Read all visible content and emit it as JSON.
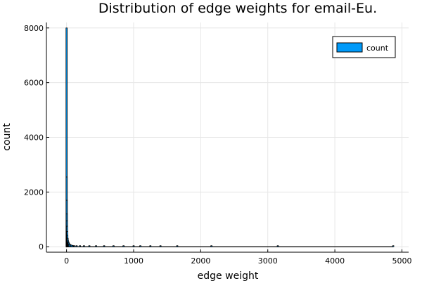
{
  "chart_data": {
    "type": "bar",
    "title": "Distribution of edge weights for email-Eu.",
    "xlabel": "edge weight",
    "ylabel": "count",
    "xlim": [
      -300,
      5100
    ],
    "ylim": [
      -200,
      8200
    ],
    "xticks": [
      0,
      1000,
      2000,
      3000,
      4000,
      5000
    ],
    "xtick_labels": [
      "0",
      "1000",
      "2000",
      "3000",
      "4000",
      "5000"
    ],
    "yticks": [
      0,
      2000,
      4000,
      6000,
      8000
    ],
    "ytick_labels": [
      "0",
      "2000",
      "4000",
      "6000",
      "8000"
    ],
    "grid": true,
    "legend": {
      "placement": "top-right"
    },
    "series": [
      {
        "name": "count",
        "color": "#009af9",
        "edge_color": "#000000",
        "bins": [
          {
            "x": 1,
            "value": 8000
          },
          {
            "x": 2,
            "value": 2550
          },
          {
            "x": 3,
            "value": 1700
          },
          {
            "x": 4,
            "value": 1200
          },
          {
            "x": 5,
            "value": 950
          },
          {
            "x": 7,
            "value": 750
          },
          {
            "x": 9,
            "value": 560
          },
          {
            "x": 12,
            "value": 420
          },
          {
            "x": 16,
            "value": 310
          },
          {
            "x": 20,
            "value": 240
          },
          {
            "x": 26,
            "value": 185
          },
          {
            "x": 33,
            "value": 140
          },
          {
            "x": 42,
            "value": 105
          },
          {
            "x": 55,
            "value": 80
          },
          {
            "x": 70,
            "value": 62
          },
          {
            "x": 90,
            "value": 48
          },
          {
            "x": 115,
            "value": 38
          },
          {
            "x": 150,
            "value": 30
          },
          {
            "x": 200,
            "value": 24
          },
          {
            "x": 260,
            "value": 18
          },
          {
            "x": 340,
            "value": 14
          },
          {
            "x": 440,
            "value": 11
          },
          {
            "x": 560,
            "value": 8
          },
          {
            "x": 700,
            "value": 6
          },
          {
            "x": 850,
            "value": 4
          },
          {
            "x": 1000,
            "value": 3
          },
          {
            "x": 1100,
            "value": 2
          },
          {
            "x": 1250,
            "value": 1
          },
          {
            "x": 1400,
            "value": 1
          },
          {
            "x": 1650,
            "value": 1
          },
          {
            "x": 2160,
            "value": 1
          },
          {
            "x": 3150,
            "value": 1
          },
          {
            "x": 4870,
            "value": 1
          }
        ]
      }
    ]
  }
}
